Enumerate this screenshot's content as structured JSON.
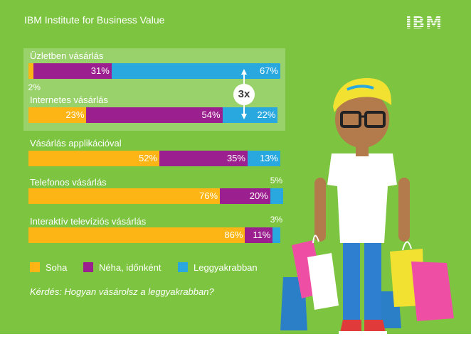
{
  "header": {
    "title": "IBM Institute for Business Value",
    "logo": "IBM"
  },
  "colors": {
    "background": "#7dc540",
    "highlight": "#99d26b",
    "soha": "#fdb515",
    "neha": "#9b1f8f",
    "leggyakrabban": "#29a8e0"
  },
  "chart_data": {
    "type": "bar",
    "orientation": "horizontal",
    "stacked": true,
    "xlim": [
      0,
      100
    ],
    "categories": [
      "Üzletben vásárlás",
      "Internetes vásárlás",
      "Vásárlás applikációval",
      "Telefonos vásárlás",
      "Interaktív televíziós vásárlás"
    ],
    "series": [
      {
        "name": "Soha",
        "values": [
          2,
          23,
          52,
          76,
          86
        ]
      },
      {
        "name": "Néha, időnként",
        "values": [
          31,
          54,
          35,
          20,
          11
        ]
      },
      {
        "name": "Leggyakrabban",
        "values": [
          67,
          22,
          13,
          5,
          3
        ]
      }
    ],
    "labels": [
      [
        "2%",
        "31%",
        "67%"
      ],
      [
        "23%",
        "54%",
        "22%"
      ],
      [
        "52%",
        "35%",
        "13%"
      ],
      [
        "76%",
        "20%",
        "5%"
      ],
      [
        "86%",
        "11%",
        "3%"
      ]
    ],
    "annotation": "3x",
    "legend_position": "bottom",
    "question": "Kérdés: Hogyan vásárolsz a leggyakrabban?"
  }
}
